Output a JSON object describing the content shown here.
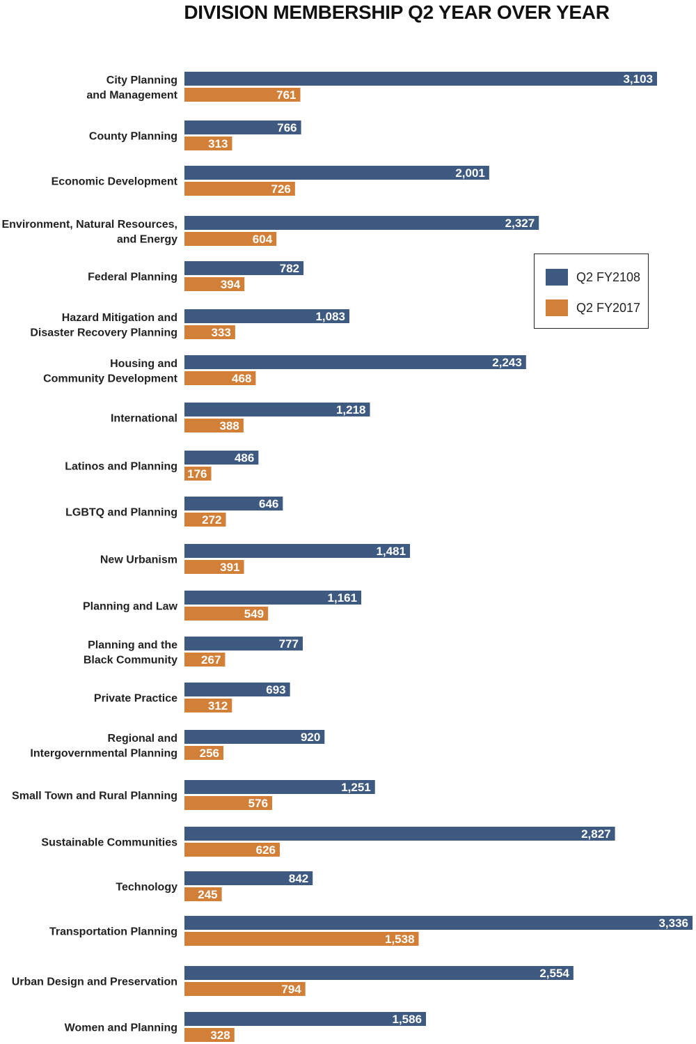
{
  "chart_data": {
    "type": "bar",
    "orientation": "horizontal",
    "title": "DIVISION MEMBERSHIP Q2 YEAR OVER YEAR",
    "xlabel": "",
    "ylabel": "",
    "xlim": [
      0,
      3336
    ],
    "grid": false,
    "legend_position": "right",
    "categories": [
      [
        "City Planning",
        "and Management"
      ],
      [
        "County Planning"
      ],
      [
        "Economic Development"
      ],
      [
        "Environment, Natural Resources,",
        "and Energy"
      ],
      [
        "Federal Planning"
      ],
      [
        "Hazard Mitigation and",
        "Disaster Recovery Planning"
      ],
      [
        "Housing and",
        "Community Development"
      ],
      [
        "International"
      ],
      [
        "Latinos and Planning"
      ],
      [
        "LGBTQ and Planning"
      ],
      [
        "New Urbanism"
      ],
      [
        "Planning and Law"
      ],
      [
        "Planning and the",
        "Black Community"
      ],
      [
        "Private Practice"
      ],
      [
        "Regional and",
        "Intergovernmental Planning"
      ],
      [
        "Small Town and Rural Planning"
      ],
      [
        "Sustainable Communities"
      ],
      [
        "Technology"
      ],
      [
        "Transportation Planning"
      ],
      [
        "Urban Design and Preservation"
      ],
      [
        "Women and Planning"
      ]
    ],
    "series": [
      {
        "name": "Q2 FY2108",
        "color": "#3f5a80",
        "values": [
          3103,
          766,
          2001,
          2327,
          782,
          1083,
          2243,
          1218,
          486,
          646,
          1481,
          1161,
          777,
          693,
          920,
          1251,
          2827,
          842,
          3336,
          2554,
          1586
        ],
        "labels": [
          "3,103",
          "766",
          "2,001",
          "2,327",
          "782",
          "1,083",
          "2,243",
          "1,218",
          "486",
          "646",
          "1,481",
          "1,161",
          "777",
          "693",
          "920",
          "1,251",
          "2,827",
          "842",
          "3,336",
          "2,554",
          "1,586"
        ]
      },
      {
        "name": "Q2 FY2017",
        "color": "#d27f38",
        "values": [
          761,
          313,
          726,
          604,
          394,
          333,
          468,
          388,
          176,
          272,
          391,
          549,
          267,
          312,
          256,
          576,
          626,
          245,
          1538,
          794,
          328
        ],
        "labels": [
          "761",
          "313",
          "726",
          "604",
          "394",
          "333",
          "468",
          "388",
          "176",
          "272",
          "391",
          "549",
          "267",
          "312",
          "256",
          "576",
          "626",
          "245",
          "1,538",
          "794",
          "328"
        ]
      }
    ]
  }
}
